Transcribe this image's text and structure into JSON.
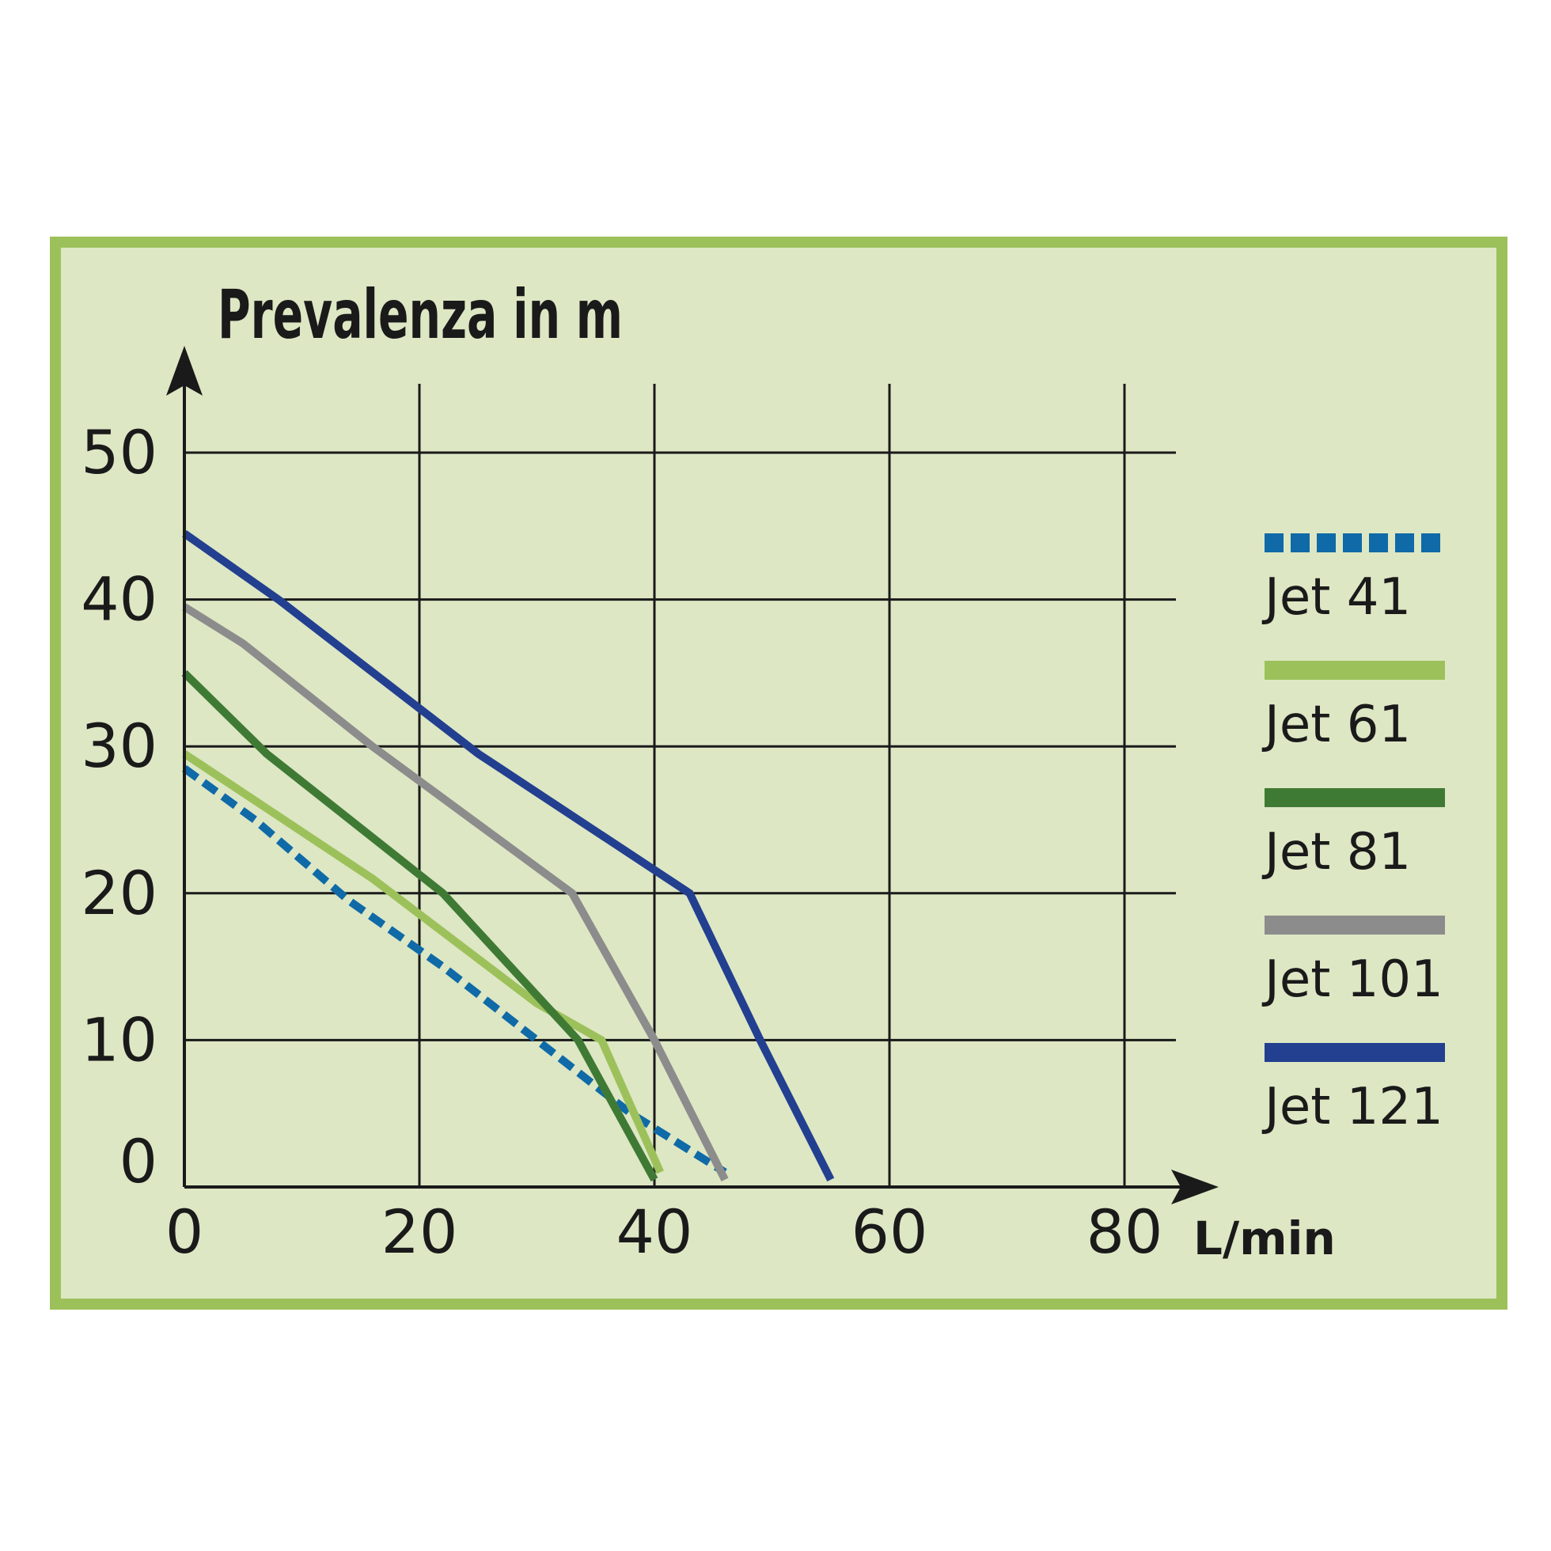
{
  "chart_data": {
    "type": "line",
    "ylabel": "Prevalenza in  m",
    "xlabel": "L/min",
    "xlim": [
      0,
      80
    ],
    "ylim": [
      0,
      50
    ],
    "xticks": [
      "0",
      "20",
      "40",
      "60",
      "80"
    ],
    "yticks": [
      "0",
      "10",
      "20",
      "30",
      "40",
      "50"
    ],
    "grid": true,
    "legend_position": "right",
    "colors": {
      "frame": "#9dc15a",
      "background": "#dde7c4",
      "grid": "#1a1a1a"
    },
    "series": [
      {
        "name": "Jet 41",
        "color": "#0f6aa7",
        "dashed": true,
        "points": [
          [
            0,
            28.5
          ],
          [
            6,
            25
          ],
          [
            14,
            19.5
          ],
          [
            22,
            15
          ],
          [
            30,
            10
          ],
          [
            38,
            5
          ],
          [
            46,
            1
          ]
        ]
      },
      {
        "name": "Jet 61",
        "color": "#9dc15a",
        "dashed": false,
        "points": [
          [
            0,
            29.5
          ],
          [
            16,
            21
          ],
          [
            30,
            12.5
          ],
          [
            35.5,
            10
          ],
          [
            40.5,
            1
          ]
        ]
      },
      {
        "name": "Jet 81",
        "color": "#3f7a35",
        "dashed": false,
        "points": [
          [
            0,
            35
          ],
          [
            7,
            29.5
          ],
          [
            22,
            20
          ],
          [
            33.5,
            10
          ],
          [
            40,
            0.5
          ]
        ]
      },
      {
        "name": "Jet 101",
        "color": "#8c8c8c",
        "dashed": false,
        "points": [
          [
            0,
            39.5
          ],
          [
            5,
            37
          ],
          [
            16,
            30
          ],
          [
            33,
            20
          ],
          [
            40,
            10
          ],
          [
            46,
            0.5
          ]
        ]
      },
      {
        "name": "Jet 121",
        "color": "#233f8f",
        "dashed": false,
        "points": [
          [
            0,
            44.5
          ],
          [
            8,
            40
          ],
          [
            25,
            29.5
          ],
          [
            43,
            20
          ],
          [
            49,
            10
          ],
          [
            55,
            0.5
          ]
        ]
      }
    ]
  }
}
